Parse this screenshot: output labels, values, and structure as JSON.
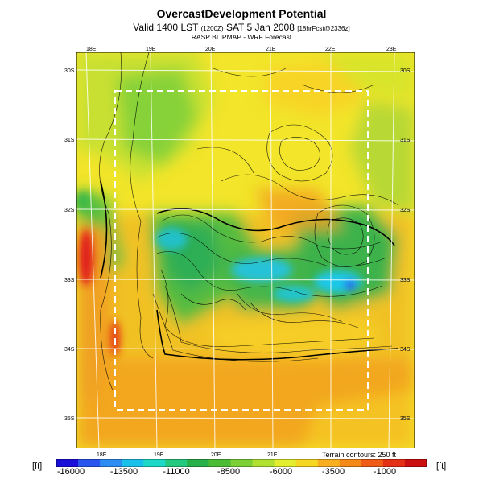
{
  "header": {
    "title": "OvercastDevelopment Potential",
    "valid_prefix": "Valid 1400 LST",
    "valid_small": "(1200Z)",
    "valid_main": "SAT 5 Jan 2008",
    "valid_suffix": "[18hrFcst@2336z]",
    "subtitle": "RASP BLIPMAP - WRF Forecast"
  },
  "map": {
    "lon_top": [
      "18E",
      "19E",
      "20E",
      "21E",
      "22E",
      "23E"
    ],
    "lon_bottom": [
      "18E",
      "19E",
      "20E",
      "21E"
    ],
    "lat_left": [
      "30S",
      "31S",
      "32S",
      "33S",
      "34S",
      "35S"
    ],
    "lat_right": [
      "30S",
      "31S",
      "32S",
      "33S",
      "34S",
      "35S"
    ],
    "terrain_note": "Terrain contours: 250 ft",
    "colors": {
      "deep_blue": "#2a3cf0",
      "cyan": "#1ec8e8",
      "green": "#3cb84a",
      "yellow": "#f0e628",
      "orange": "#f49a20",
      "red": "#e01a1a",
      "inner_box": "#ffffff"
    }
  },
  "colorbar": {
    "unit_left": "[ft]",
    "unit_right": "[ft]",
    "labels": [
      "-16000",
      "-13500",
      "-11000",
      "-8500",
      "-6000",
      "-3500",
      "-1000"
    ],
    "colors": [
      "#1a0fd8",
      "#2a56f0",
      "#2c8cf2",
      "#19c0ec",
      "#1ed8c8",
      "#24c87e",
      "#28b048",
      "#4cbc36",
      "#7ad034",
      "#b0e030",
      "#e2ee2e",
      "#f6d823",
      "#f8b020",
      "#f48818",
      "#ee5c16",
      "#e43014",
      "#cc1010"
    ]
  }
}
